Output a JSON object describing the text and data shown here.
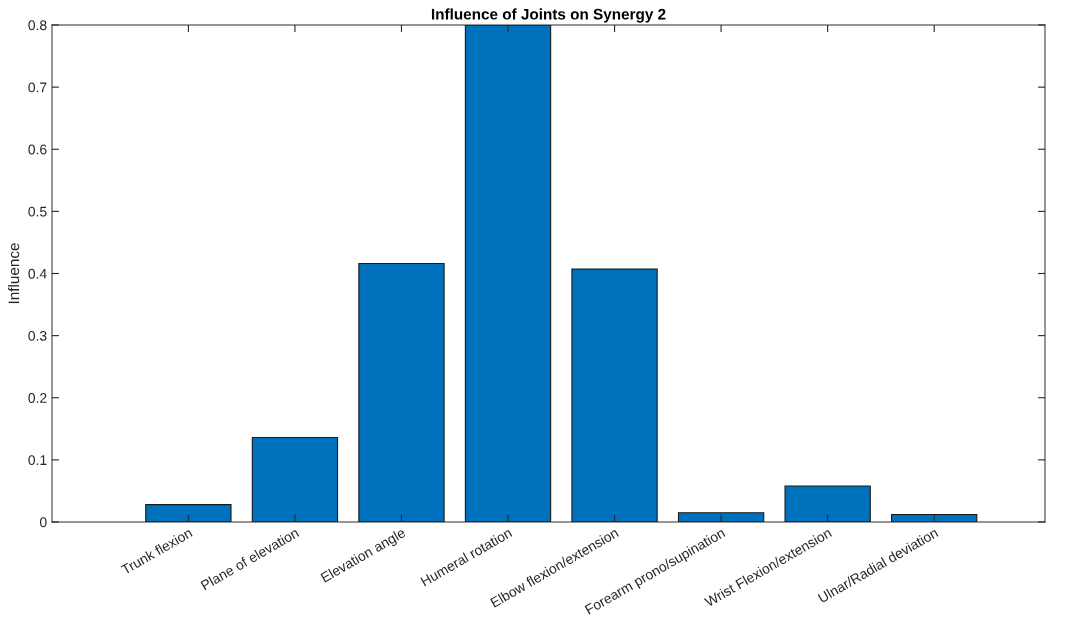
{
  "chart_data": {
    "type": "bar",
    "title": "Influence of Joints on Synergy 2",
    "ylabel": "Influence",
    "categories": [
      "Trunk flexion",
      "Plane of elevation",
      "Elevation angle",
      "Humeral rotation",
      "Elbow flexion/extension",
      "Forearm prono/supination",
      "Wrist Flexion/extension",
      "Ulnar/Radial deviation"
    ],
    "values": [
      0.028,
      0.136,
      0.416,
      0.8,
      0.407,
      0.015,
      0.058,
      0.012
    ],
    "color": "#0072bd",
    "ylim": [
      0,
      0.8
    ],
    "yticks": [
      0,
      0.1,
      0.2,
      0.3,
      0.4,
      0.5,
      0.6,
      0.7,
      0.8
    ],
    "grid": false,
    "legend": false
  }
}
